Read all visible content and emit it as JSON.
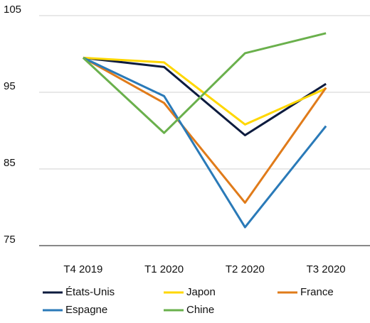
{
  "chart_data": {
    "type": "line",
    "categories": [
      "T4 2019",
      "T1 2020",
      "T2 2020",
      "T3 2020"
    ],
    "series": [
      {
        "name": "États-Unis",
        "color": "#0d1b3e",
        "values": [
          99.5,
          98.3,
          89.4,
          96.1
        ]
      },
      {
        "name": "Japon",
        "color": "#ffd700",
        "values": [
          99.5,
          98.9,
          90.8,
          95.5
        ]
      },
      {
        "name": "France",
        "color": "#e07b1a",
        "values": [
          99.5,
          93.6,
          80.6,
          95.6
        ]
      },
      {
        "name": "Espagne",
        "color": "#2a7ab8",
        "values": [
          99.5,
          94.5,
          77.4,
          90.6
        ]
      },
      {
        "name": "Chine",
        "color": "#6ab04c",
        "values": [
          99.5,
          89.7,
          100.1,
          102.7
        ]
      }
    ],
    "ylim": [
      75,
      105
    ],
    "yticks": [
      75,
      85,
      95,
      105
    ],
    "grid": true,
    "legend": "bottom"
  }
}
